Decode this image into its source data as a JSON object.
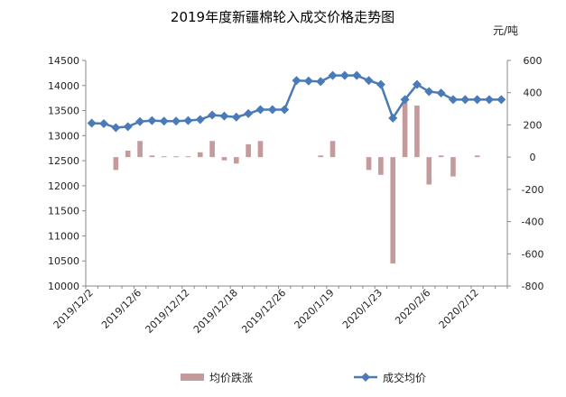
{
  "chart_data": {
    "type": "bar+line",
    "title": "2019年度新疆棉轮入成交价格走势图",
    "right_unit": "元/吨",
    "left_axis": {
      "ylim": [
        10000,
        14500
      ],
      "ticks": [
        10000,
        10500,
        11000,
        11500,
        12000,
        12500,
        13000,
        13500,
        14000,
        14500
      ]
    },
    "right_axis": {
      "ylim": [
        -800,
        600
      ],
      "ticks": [
        -800,
        -600,
        -400,
        -200,
        0,
        200,
        400,
        600
      ]
    },
    "x_tick_labels": [
      "2019/12/2",
      "2019/12/6",
      "2019/12/12",
      "2019/12/18",
      "2019/12/26",
      "2020/1/19",
      "2020/1/23",
      "2020/2/6",
      "2020/2/12"
    ],
    "x_tick_index": [
      0,
      4,
      8,
      12,
      16,
      20,
      24,
      28,
      32
    ],
    "series": [
      {
        "name": "均价跌涨",
        "type": "bar",
        "axis": "right",
        "color": "#c49a9a",
        "values": [
          0,
          0,
          -80,
          40,
          100,
          10,
          5,
          5,
          5,
          30,
          100,
          -20,
          -40,
          80,
          100,
          0,
          0,
          0,
          0,
          10,
          100,
          0,
          0,
          -80,
          -110,
          -660,
          340,
          320,
          -170,
          10,
          -120,
          0,
          10,
          0,
          0
        ]
      },
      {
        "name": "成交均价",
        "type": "line",
        "axis": "left",
        "color": "#4a7ab8",
        "values": [
          13250,
          13240,
          13160,
          13180,
          13280,
          13300,
          13290,
          13290,
          13300,
          13320,
          13410,
          13390,
          13370,
          13440,
          13520,
          13520,
          13520,
          14100,
          14090,
          14080,
          14200,
          14200,
          14200,
          14100,
          14020,
          13350,
          13720,
          14020,
          13880,
          13850,
          13720,
          13720,
          13720,
          13720,
          13720
        ]
      }
    ],
    "legend_position": "bottom",
    "grid": false
  }
}
